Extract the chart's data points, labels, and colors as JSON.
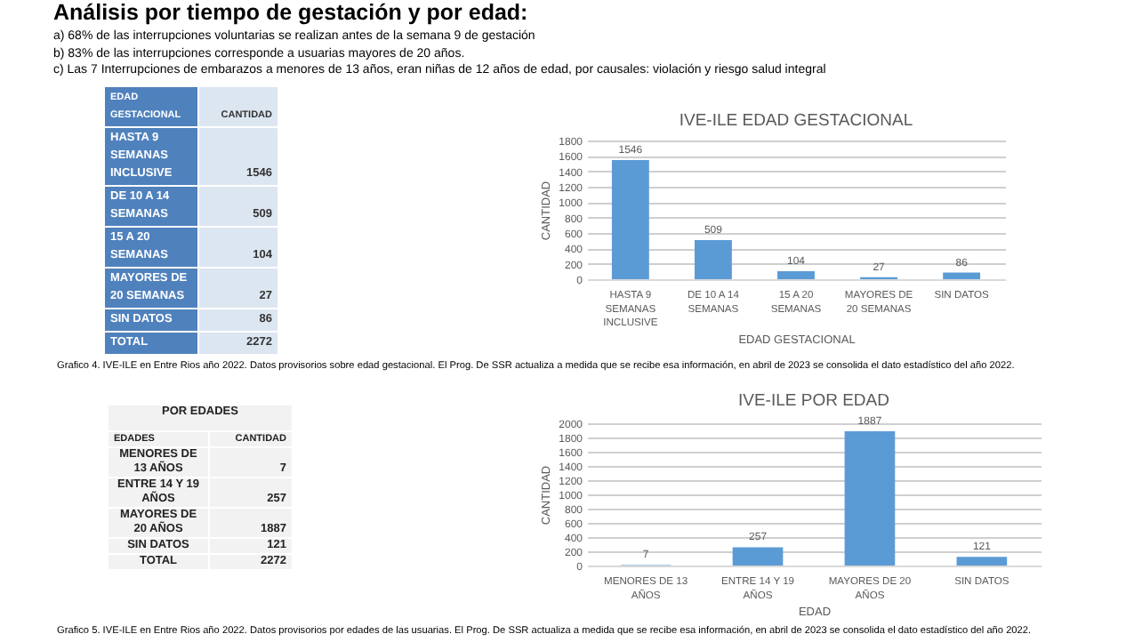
{
  "chart_data": [
    {
      "type": "other",
      "title": "Análisis por tiempo de gestación y por edad:",
      "annotations": [
        "a)   68% de las interrupciones voluntarias se realizan antes de la semana 9 de gestación",
        "b)   83% de las interrupciones corresponde a usuarias mayores de 20 años.",
        "c)   Las 7 Interrupciones de embarazos a menores de 13 años, eran niñas de 12 años de edad, por causales: violación y riesgo salud integral"
      ]
    },
    {
      "type": "other",
      "annotations": [
        "EDAD GESTACIONAL",
        "CANTIDAD",
        "HASTA 9 SEMANAS INCLUSIVE",
        "1546",
        "DE 10 A 14 SEMANAS",
        "509",
        "15 A 20 SEMANAS",
        "104",
        "MAYORES DE 20 SEMANAS",
        "27",
        "SIN DATOS",
        "86",
        "TOTAL",
        "2272"
      ]
    },
    {
      "type": "bar",
      "title": "IVE-ILE EDAD GESTACIONAL",
      "xlabel": "EDAD GESTACIONAL",
      "ylabel": "CANTIDAD",
      "categories": [
        "HASTA 9 SEMANAS INCLUSIVE",
        "DE 10 A 14 SEMANAS",
        "15 A 20 SEMANAS",
        "MAYORES DE 20 SEMANAS",
        "SIN DATOS"
      ],
      "values": [
        1546,
        509,
        104,
        27,
        86
      ],
      "color": "#5b9bd5",
      "ylim": [
        0,
        1800
      ],
      "yticks": [
        0,
        200,
        400,
        600,
        800,
        1000,
        1200,
        1400,
        1600,
        1800
      ],
      "grid": "y",
      "data_labels": true,
      "annotations": [
        "Grafico 4.  IVE-ILE en Entre Rios año 2022. Datos provisorios sobre edad gestacional. El Prog. De SSR actualiza a medida que se recibe esa información, en abril de 2023 se consolida el dato estadístico del año 2022."
      ]
    },
    {
      "type": "other",
      "title": "POR EDADES",
      "annotations": [
        "EDADES",
        "CANTIDAD",
        "MENORES DE 13 AÑOS",
        "7",
        "ENTRE 14 Y 19 AÑOS",
        "257",
        "MAYORES DE 20 AÑOS",
        "1887",
        "SIN DATOS",
        "121",
        "TOTAL",
        "2272"
      ]
    },
    {
      "type": "bar",
      "title": "IVE-ILE POR EDAD",
      "xlabel": "EDAD",
      "ylabel": "CANTIDAD",
      "categories": [
        "MENORES DE 13 AÑOS",
        "ENTRE 14 Y 19 AÑOS",
        "MAYORES DE 20 AÑOS",
        "SIN DATOS"
      ],
      "values": [
        7,
        257,
        1887,
        121
      ],
      "color": "#5b9bd5",
      "ylim": [
        0,
        2000
      ],
      "yticks": [
        0,
        200,
        400,
        600,
        800,
        1000,
        1200,
        1400,
        1600,
        1800,
        2000
      ],
      "grid": "y",
      "data_labels": true,
      "annotations": [
        "Grafico 5.  IVE-ILE en Entre Rios año 2022. Datos provisorios por edades de las usuarias. El Prog. De SSR actualiza a medida que se recibe esa información, en abril de 2023 se consolida el dato estadístico del año 2022."
      ]
    }
  ]
}
